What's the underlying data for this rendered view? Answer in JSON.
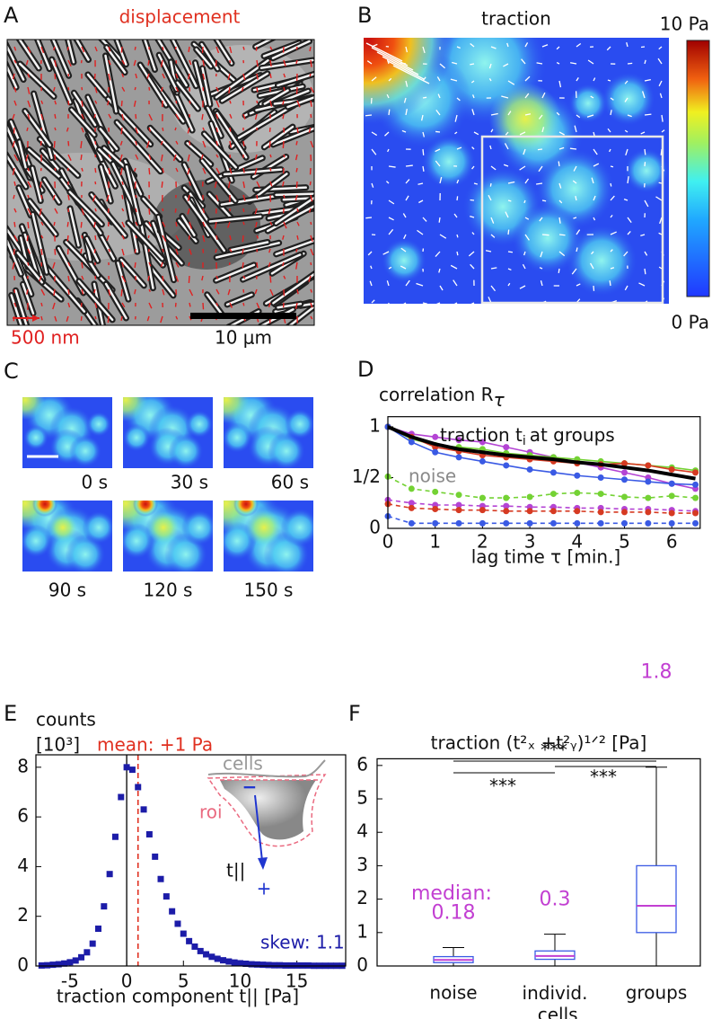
{
  "panels": {
    "A": {
      "label": "A",
      "title": "displacement",
      "arrow_scale": "500 nm",
      "scale_bar": "10 μm"
    },
    "B": {
      "label": "B",
      "title": "traction",
      "colorbar_top": "10 Pa",
      "colorbar_bottom": "0 Pa"
    },
    "C": {
      "label": "C",
      "times": [
        "0 s",
        "30 s",
        "60 s",
        "90 s",
        "120 s",
        "150 s"
      ]
    }
  },
  "chart_data": [
    {
      "type": "line",
      "panel_label": "D",
      "title": "correlation R",
      "title_subscript": "τ",
      "annotation": "traction t",
      "annotation_subscript": "i",
      "annotation_end": "at groups",
      "noise_label": "noise",
      "xlabel": "lag time τ [min.]",
      "x": [
        0,
        0.5,
        1,
        1.5,
        2,
        2.5,
        3,
        3.5,
        4,
        4.5,
        5,
        5.5,
        6,
        6.5
      ],
      "xlim": [
        0,
        6.6
      ],
      "ylim": [
        0,
        1.1
      ],
      "xticks": [
        0,
        1,
        2,
        3,
        4,
        5,
        6
      ],
      "yticks": [
        0,
        {
          "value": 0.5,
          "label": "1/2"
        },
        1
      ],
      "series": [
        {
          "color": "#74d234",
          "dashed": true,
          "markers": true,
          "values": [
            0.51,
            0.39,
            0.36,
            0.33,
            0.3,
            0.3,
            0.31,
            0.34,
            0.35,
            0.34,
            0.31,
            0.3,
            0.32,
            0.3
          ]
        },
        {
          "color": "#b444d4",
          "dashed": true,
          "markers": true,
          "values": [
            0.28,
            0.25,
            0.23,
            0.23,
            0.22,
            0.22,
            0.21,
            0.21,
            0.2,
            0.2,
            0.19,
            0.19,
            0.18,
            0.17
          ]
        },
        {
          "color": "#d63a22",
          "dashed": true,
          "markers": true,
          "values": [
            0.24,
            0.2,
            0.19,
            0.18,
            0.18,
            0.17,
            0.17,
            0.17,
            0.17,
            0.16,
            0.16,
            0.16,
            0.15,
            0.15
          ]
        },
        {
          "color": "#3a5ae4",
          "dashed": true,
          "markers": true,
          "values": [
            0.12,
            0.05,
            0.05,
            0.05,
            0.05,
            0.05,
            0.05,
            0.05,
            0.05,
            0.05,
            0.05,
            0.05,
            0.05,
            0.05
          ]
        },
        {
          "color": "#b444d4",
          "dashed": false,
          "markers": true,
          "values": [
            1,
            0.93,
            0.9,
            0.87,
            0.85,
            0.8,
            0.75,
            0.7,
            0.65,
            0.6,
            0.55,
            0.5,
            0.44,
            0.39
          ]
        },
        {
          "color": "#74d234",
          "dashed": false,
          "markers": true,
          "values": [
            1,
            0.88,
            0.82,
            0.8,
            0.78,
            0.74,
            0.72,
            0.7,
            0.68,
            0.66,
            0.64,
            0.62,
            0.6,
            0.57
          ]
        },
        {
          "color": "#d63a22",
          "dashed": false,
          "markers": true,
          "values": [
            1,
            0.9,
            0.8,
            0.76,
            0.72,
            0.7,
            0.68,
            0.66,
            0.64,
            0.63,
            0.64,
            0.62,
            0.58,
            0.55
          ]
        },
        {
          "color": "#3a5ae4",
          "dashed": false,
          "markers": true,
          "values": [
            1,
            0.85,
            0.75,
            0.7,
            0.66,
            0.62,
            0.58,
            0.55,
            0.52,
            0.5,
            0.48,
            0.46,
            0.44,
            0.43
          ]
        },
        {
          "color": "#000000",
          "dashed": false,
          "markers": false,
          "line_width": 4,
          "values": [
            1,
            0.9,
            0.83,
            0.78,
            0.75,
            0.72,
            0.7,
            0.68,
            0.65,
            0.63,
            0.6,
            0.57,
            0.53,
            0.49
          ]
        }
      ]
    },
    {
      "type": "scatter",
      "panel_label": "E",
      "ylabel": "counts",
      "yunit": "[10³]",
      "mean": 1,
      "mean_label": "mean: +1 Pa",
      "xlabel": "traction component t|| [Pa]",
      "skew_label": "skew: 1.1",
      "inset": {
        "cells": "cells",
        "roi": "roi",
        "minus": "−",
        "plus": "+",
        "vector": "t||"
      },
      "color": "#1c1ca8",
      "x": [
        -7.5,
        -7,
        -6.5,
        -6,
        -5.5,
        -5,
        -4.5,
        -4,
        -3.5,
        -3,
        -2.5,
        -2,
        -1.5,
        -1,
        -0.5,
        0,
        0.5,
        1,
        1.5,
        2,
        2.5,
        3,
        3.5,
        4,
        4.5,
        5,
        5.5,
        6,
        6.5,
        7,
        7.5,
        8,
        8.5,
        9,
        9.5,
        10,
        10.5,
        11,
        11.5,
        12,
        12.5,
        13,
        13.5,
        14,
        14.5,
        15,
        15.5,
        16,
        16.5,
        17,
        17.5,
        18,
        18.5,
        19
      ],
      "values": [
        0.02,
        0.03,
        0.05,
        0.07,
        0.1,
        0.15,
        0.22,
        0.35,
        0.55,
        0.9,
        1.5,
        2.4,
        3.7,
        5.2,
        6.8,
        8.0,
        7.9,
        7.2,
        6.3,
        5.3,
        4.4,
        3.5,
        2.8,
        2.2,
        1.7,
        1.3,
        1.0,
        0.78,
        0.6,
        0.47,
        0.37,
        0.29,
        0.23,
        0.18,
        0.14,
        0.11,
        0.09,
        0.07,
        0.06,
        0.05,
        0.04,
        0.03,
        0.03,
        0.02,
        0.02,
        0.02,
        0.02,
        0.02,
        0.01,
        0.01,
        0.01,
        0.01,
        0.01,
        0.01
      ],
      "xlim": [
        -8,
        19.3
      ],
      "ylim": [
        0,
        8.5
      ],
      "xticks": [
        -5,
        0,
        5,
        10,
        15
      ],
      "yticks": [
        0,
        2,
        4,
        6,
        8
      ]
    },
    {
      "type": "box",
      "panel_label": "F",
      "title": "traction (t²ₓ +t²ᵧ)¹ᐟ² [Pa]",
      "categories": [
        "noise",
        "individ. cells",
        "groups"
      ],
      "boxes": [
        {
          "min": 0,
          "q1": 0.1,
          "median": 0.18,
          "q3": 0.28,
          "max": 0.55
        },
        {
          "min": 0,
          "q1": 0.2,
          "median": 0.3,
          "q3": 0.45,
          "max": 0.95
        },
        {
          "min": 0,
          "q1": 1.0,
          "median": 1.8,
          "q3": 3.0,
          "max": 5.95
        }
      ],
      "median_label": "median:",
      "significance": [
        "***",
        "***",
        "***"
      ],
      "ylim": [
        0,
        6.2
      ],
      "yticks": [
        0,
        1,
        2,
        3,
        4,
        5,
        6
      ],
      "box_color": "#3a5ae4",
      "median_color": "#c23fd2"
    }
  ]
}
